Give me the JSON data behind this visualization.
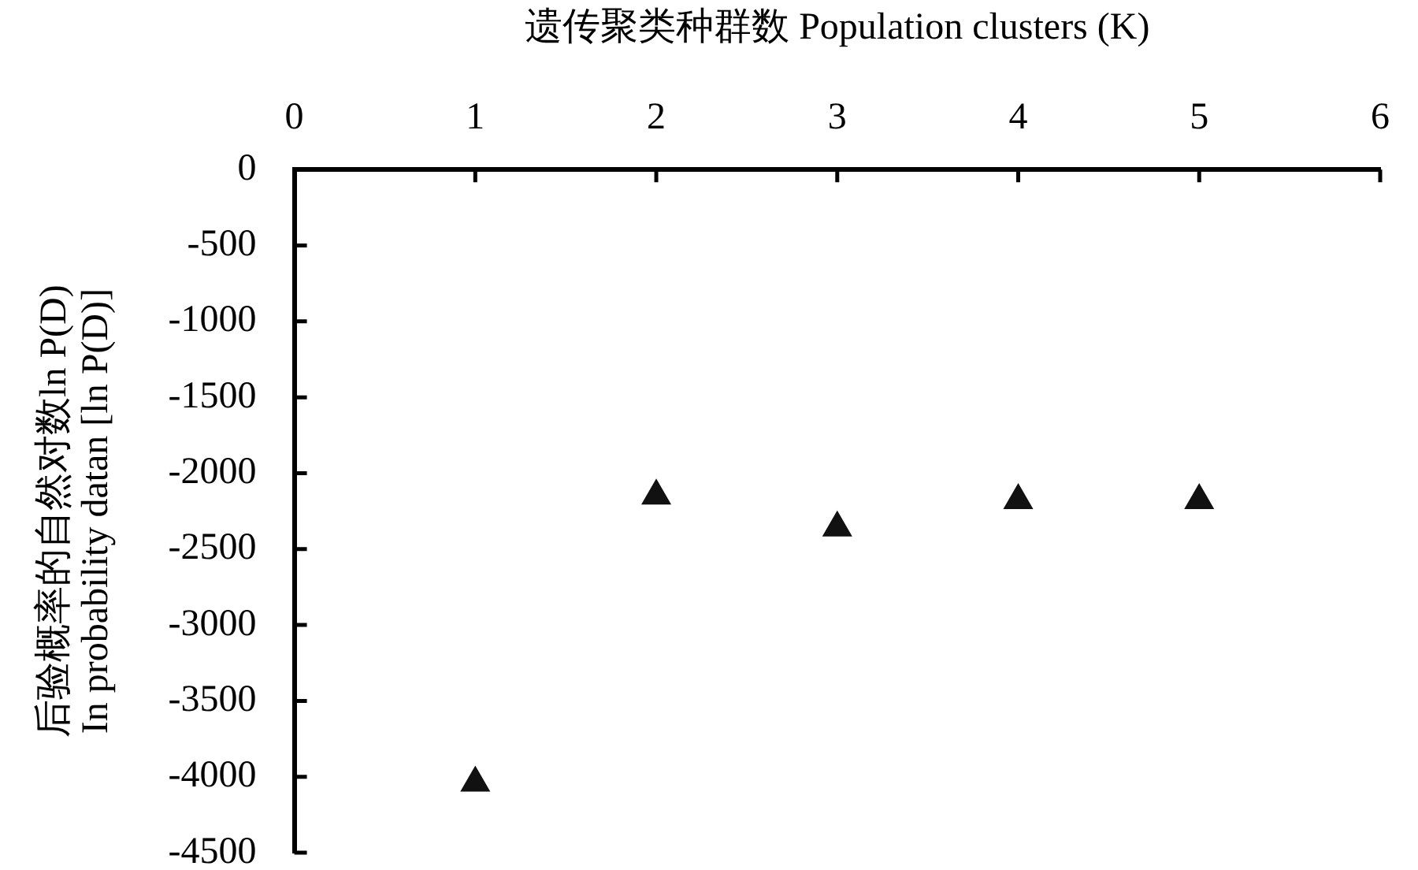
{
  "chart_data": {
    "type": "scatter",
    "xlabel": "遗传聚类种群数 Population clusters (K)",
    "ylabel": "后验概率的自然对数ln P(D)\nIn probability datan [ln P(D)]",
    "x": [
      1,
      2,
      3,
      4,
      5
    ],
    "values": [
      -4040,
      -2150,
      -2360,
      -2180,
      -2180
    ],
    "color": "#111111",
    "marker": "triangle",
    "xlim": [
      0,
      6
    ],
    "xticks": [
      0,
      1,
      2,
      3,
      4,
      5,
      6
    ],
    "ylim": [
      -4500,
      0
    ],
    "yticks": [
      -4500,
      -4000,
      -3500,
      -3000,
      -2500,
      -2000,
      -1500,
      -1000,
      -500,
      0
    ]
  }
}
